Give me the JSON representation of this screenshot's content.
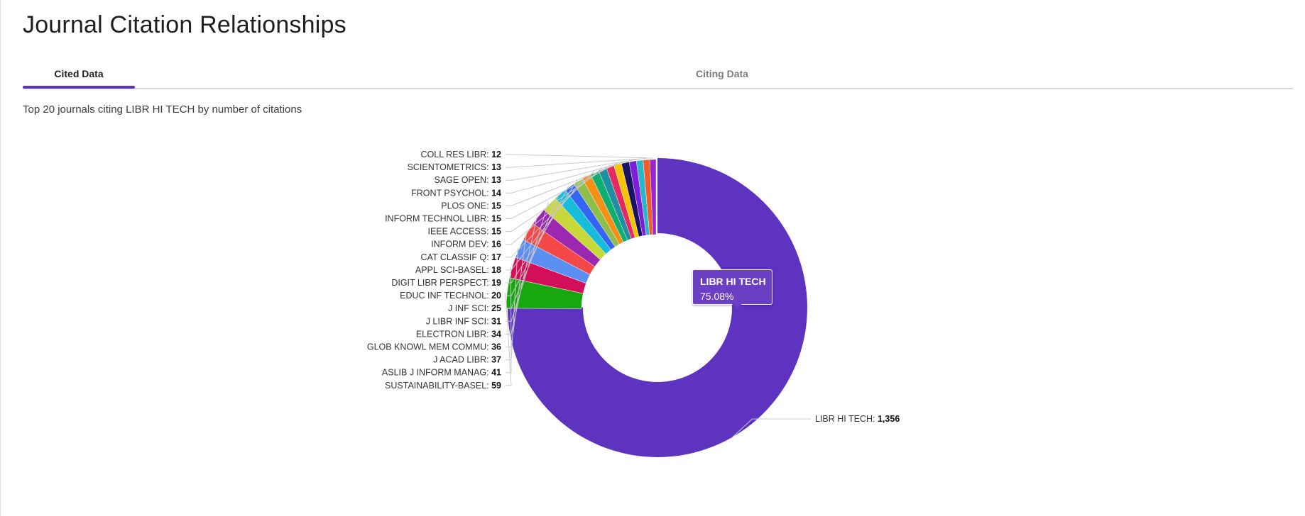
{
  "page": {
    "title": "Journal Citation Relationships",
    "subtitle": "Top 20 journals citing LIBR HI TECH by number of citations"
  },
  "tabs": [
    {
      "label": "Cited Data",
      "active": true
    },
    {
      "label": "Citing Data",
      "active": false
    }
  ],
  "tooltip": {
    "name": "LIBR HI TECH",
    "percent": "75.08%"
  },
  "colors": {
    "accent": "#5e33bf",
    "tab_border": "#d6d6dc"
  },
  "chart_data": {
    "type": "pie",
    "donut": true,
    "title": "",
    "slices": [
      {
        "label": "LIBR HI TECH",
        "value": 1356,
        "display": "1,356",
        "color": "#5e33bf"
      },
      {
        "label": "SUSTAINABILITY-BASEL",
        "value": 59,
        "display": "59",
        "color": "#17a80f"
      },
      {
        "label": "ASLIB J INFORM MANAG",
        "value": 41,
        "display": "41",
        "color": "#d40f5a"
      },
      {
        "label": "J ACAD LIBR",
        "value": 37,
        "display": "37",
        "color": "#5b8ff2"
      },
      {
        "label": "GLOB KNOWL MEM COMMU",
        "value": 36,
        "display": "36",
        "color": "#f44848"
      },
      {
        "label": "ELECTRON LIBR",
        "value": 34,
        "display": "34",
        "color": "#9c27b0"
      },
      {
        "label": "J LIBR INF SCI",
        "value": 31,
        "display": "31",
        "color": "#c8d83a"
      },
      {
        "label": "J INF SCI",
        "value": 25,
        "display": "25",
        "color": "#16bcd9"
      },
      {
        "label": "EDUC INF TECHNOL",
        "value": 20,
        "display": "20",
        "color": "#3465f4"
      },
      {
        "label": "DIGIT LIBR PERSPECT",
        "value": 19,
        "display": "19",
        "color": "#8fbf4a"
      },
      {
        "label": "APPL SCI-BASEL",
        "value": 18,
        "display": "18",
        "color": "#f59017"
      },
      {
        "label": "CAT CLASSIF Q",
        "value": 17,
        "display": "17",
        "color": "#0fae6f"
      },
      {
        "label": "INFORM DEV",
        "value": 16,
        "display": "16",
        "color": "#1e8fa0"
      },
      {
        "label": "IEEE ACCESS",
        "value": 15,
        "display": "15",
        "color": "#e52963"
      },
      {
        "label": "INFORM TECHNOL LIBR",
        "value": 15,
        "display": "15",
        "color": "#f5c300"
      },
      {
        "label": "PLOS ONE",
        "value": 15,
        "display": "15",
        "color": "#1a1466"
      },
      {
        "label": "FRONT PSYCHOL",
        "value": 14,
        "display": "14",
        "color": "#7b1fd8"
      },
      {
        "label": "SAGE OPEN",
        "value": 13,
        "display": "13",
        "color": "#2bb5c8"
      },
      {
        "label": "SCIENTOMETRICS",
        "value": 13,
        "display": "13",
        "color": "#f25c2a"
      },
      {
        "label": "COLL RES LIBR",
        "value": 12,
        "display": "12",
        "color": "#9924d0"
      }
    ]
  }
}
